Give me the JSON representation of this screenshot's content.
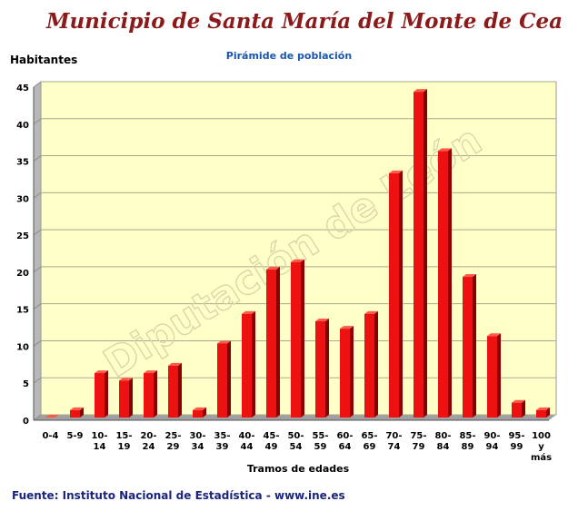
{
  "header": {
    "title": "Municipio de Santa María del Monte de Cea",
    "subtitle": "Pirámide de población"
  },
  "footer": {
    "source": "Fuente: Instituto Nacional de Estadística - www.ine.es"
  },
  "colors": {
    "bar": "#ee1111",
    "bar_side": "#8a0000",
    "bar_top": "#ff5a4a",
    "plot_background": "#ffffc8",
    "title": "#8b1a1a",
    "subtitle": "#1a56b0",
    "source": "#1a237e"
  },
  "watermark": {
    "text": "Diputación de León"
  },
  "chart_data": {
    "type": "bar",
    "title": "Pirámide de población",
    "xlabel": "Tramos de edades",
    "ylabel": "Habitantes",
    "ylim": [
      0,
      45
    ],
    "ytick_step": 5,
    "grid": true,
    "legend": "none",
    "categories": [
      "0-4",
      "5-9",
      "10-14",
      "15-19",
      "20-24",
      "25-29",
      "30-34",
      "35-39",
      "40-44",
      "45-49",
      "50-54",
      "55-59",
      "60-64",
      "65-69",
      "70-74",
      "75-79",
      "80-84",
      "85-89",
      "90-94",
      "95-99",
      "100 y más"
    ],
    "tick_labels": [
      [
        "0-4"
      ],
      [
        "5-9"
      ],
      [
        "10-",
        "14"
      ],
      [
        "15-",
        "19"
      ],
      [
        "20-",
        "24"
      ],
      [
        "25-",
        "29"
      ],
      [
        "30-",
        "34"
      ],
      [
        "35-",
        "39"
      ],
      [
        "40-",
        "44"
      ],
      [
        "45-",
        "49"
      ],
      [
        "50-",
        "54"
      ],
      [
        "55-",
        "59"
      ],
      [
        "60-",
        "64"
      ],
      [
        "65-",
        "69"
      ],
      [
        "70-",
        "74"
      ],
      [
        "75-",
        "79"
      ],
      [
        "80-",
        "84"
      ],
      [
        "85-",
        "89"
      ],
      [
        "90-",
        "94"
      ],
      [
        "95-",
        "99"
      ],
      [
        "100",
        "y",
        "más"
      ]
    ],
    "values": [
      0,
      1,
      6,
      5,
      6,
      7,
      1,
      10,
      14,
      20,
      21,
      13,
      12,
      14,
      33,
      44,
      36,
      19,
      11,
      2,
      1
    ]
  }
}
